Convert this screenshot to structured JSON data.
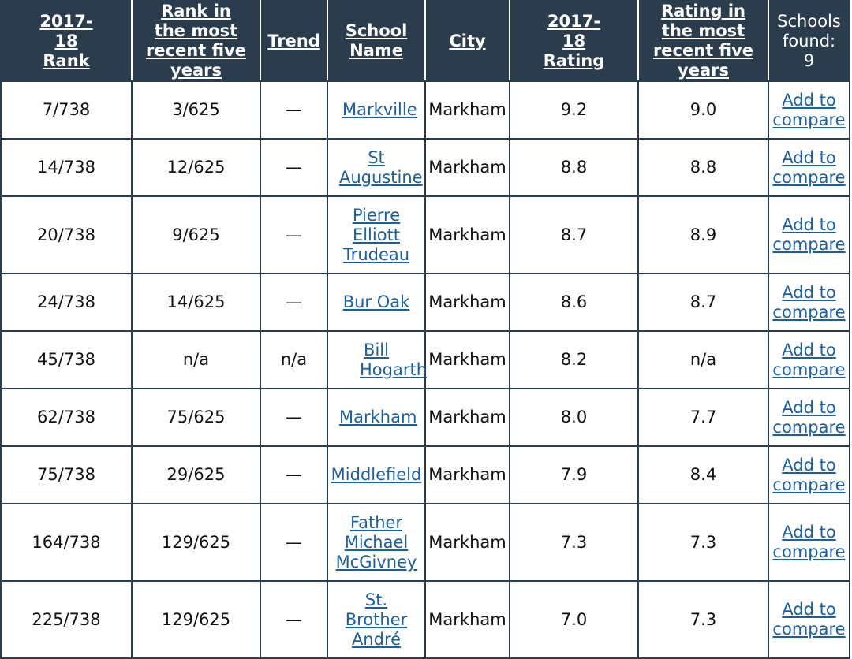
{
  "header": {
    "rank": "2017-18 Rank",
    "rank_five": "Rank in the most recent five years",
    "trend": "Trend",
    "school_name": "School Name",
    "city": "City",
    "rating": "2017-18 Rating",
    "rating_five": "Rating in the most recent five years",
    "schools_found_label": "Schools found:",
    "schools_found_count": "9"
  },
  "compare_line1": "Add to",
  "compare_line2": "compare",
  "rows": [
    {
      "rank": "7/738",
      "rank_five": "3/625",
      "trend": "—",
      "school": "Markville",
      "city": "Markham",
      "rating": "9.2",
      "rating_five": "9.0"
    },
    {
      "rank": "14/738",
      "rank_five": "12/625",
      "trend": "—",
      "school": "St Augustine",
      "city": "Markham",
      "rating": "8.8",
      "rating_five": "8.8"
    },
    {
      "rank": "20/738",
      "rank_five": "9/625",
      "trend": "—",
      "school": "Pierre Elliott Trudeau",
      "city": "Markham",
      "rating": "8.7",
      "rating_five": "8.9"
    },
    {
      "rank": "24/738",
      "rank_five": "14/625",
      "trend": "—",
      "school": "Bur Oak",
      "city": "Markham",
      "rating": "8.6",
      "rating_five": "8.7"
    },
    {
      "rank": "45/738",
      "rank_five": "n/a",
      "trend": "n/a",
      "school": "Bill Hogarth",
      "city": "Markham",
      "rating": "8.2",
      "rating_five": "n/a"
    },
    {
      "rank": "62/738",
      "rank_five": "75/625",
      "trend": "—",
      "school": "Markham",
      "city": "Markham",
      "rating": "8.0",
      "rating_five": "7.7"
    },
    {
      "rank": "75/738",
      "rank_five": "29/625",
      "trend": "—",
      "school": "Middlefield",
      "city": "Markham",
      "rating": "7.9",
      "rating_five": "8.4"
    },
    {
      "rank": "164/738",
      "rank_five": "129/625",
      "trend": "—",
      "school": "Father Michael McGivney",
      "city": "Markham",
      "rating": "7.3",
      "rating_five": "7.3"
    },
    {
      "rank": "225/738",
      "rank_five": "129/625",
      "trend": "—",
      "school": "St. Brother André",
      "city": "Markham",
      "rating": "7.0",
      "rating_five": "7.3"
    }
  ],
  "colors": {
    "header_bg": "#2b3d4c",
    "link": "#1a5f9e"
  }
}
